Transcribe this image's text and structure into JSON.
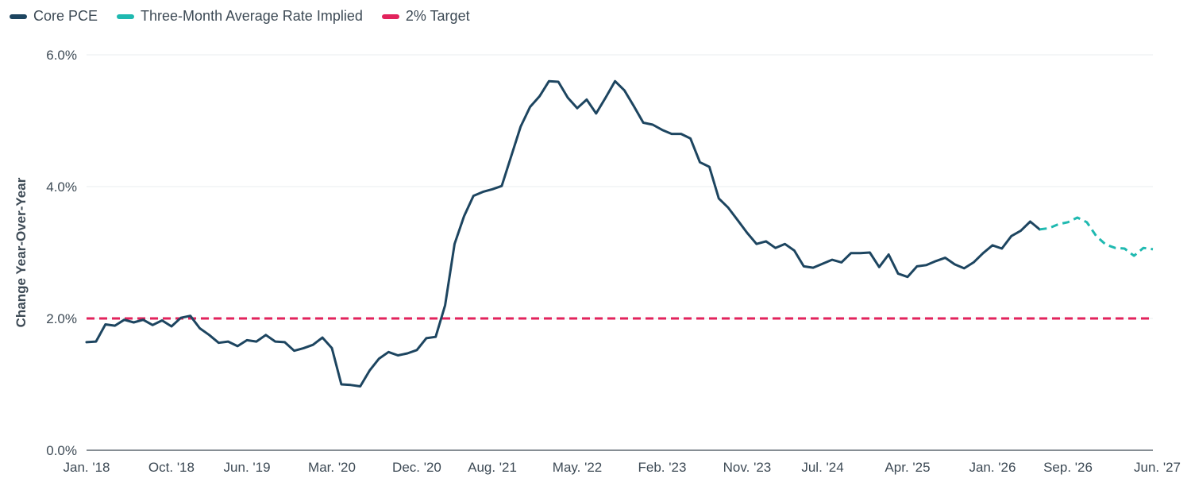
{
  "chart_data": {
    "type": "line",
    "ylabel": "Change Year-Over-Year",
    "ylim": [
      0,
      6
    ],
    "y_ticks": [
      "0.0%",
      "2.0%",
      "4.0%",
      "6.0%"
    ],
    "y_tick_values": [
      0,
      2,
      4,
      6
    ],
    "x_tick_labels": [
      "Jan. '18",
      "Oct. '18",
      "Jun. '19",
      "Mar. '20",
      "Dec. '20",
      "Aug. '21",
      "May. '22",
      "Feb. '23",
      "Nov. '23",
      "Jul. '24",
      "Apr. '25",
      "Jan. '26",
      "Sep. '26",
      "Jun. '27"
    ],
    "x_tick_indices": [
      0,
      9,
      17,
      26,
      35,
      43,
      52,
      61,
      70,
      78,
      87,
      96,
      104,
      113
    ],
    "x_range": [
      0,
      113
    ],
    "grid": true,
    "legend_position": "top-left",
    "series": [
      {
        "name": "Core PCE",
        "color": "#1d4560",
        "style": "solid",
        "x": [
          0,
          1,
          2,
          3,
          4,
          5,
          6,
          7,
          8,
          9,
          10,
          11,
          12,
          13,
          14,
          15,
          16,
          17,
          18,
          19,
          20,
          21,
          22,
          23,
          24,
          25,
          26,
          27,
          28,
          29,
          30,
          31,
          32,
          33,
          34,
          35,
          36,
          37,
          38,
          39,
          40,
          41,
          42,
          43,
          44,
          45,
          46,
          47,
          48,
          49,
          50,
          51,
          52,
          53,
          54,
          55,
          56,
          57,
          58,
          59,
          60,
          61,
          62,
          63,
          64,
          65,
          66,
          67,
          68,
          69,
          70,
          71,
          72,
          73,
          74,
          75,
          76,
          77,
          78,
          79,
          80,
          81,
          82,
          83,
          84,
          85,
          86,
          87,
          88,
          89,
          90,
          91,
          92,
          93,
          94,
          95,
          96,
          97,
          98,
          99,
          100,
          101
        ],
        "values": [
          1.64,
          1.65,
          1.91,
          1.89,
          1.98,
          1.94,
          1.98,
          1.9,
          1.97,
          1.88,
          2.01,
          2.04,
          1.85,
          1.75,
          1.63,
          1.65,
          1.58,
          1.67,
          1.65,
          1.75,
          1.65,
          1.64,
          1.51,
          1.55,
          1.6,
          1.71,
          1.55,
          1.0,
          0.99,
          0.97,
          1.21,
          1.39,
          1.49,
          1.44,
          1.47,
          1.52,
          1.7,
          1.72,
          2.2,
          3.13,
          3.55,
          3.86,
          3.92,
          3.96,
          4.01,
          4.46,
          4.91,
          5.21,
          5.37,
          5.6,
          5.59,
          5.35,
          5.19,
          5.32,
          5.11,
          5.35,
          5.6,
          5.46,
          5.22,
          4.97,
          4.94,
          4.86,
          4.8,
          4.8,
          4.73,
          4.37,
          4.3,
          3.82,
          3.68,
          3.49,
          3.3,
          3.13,
          3.17,
          3.07,
          3.13,
          3.03,
          2.79,
          2.77,
          2.83,
          2.89,
          2.85,
          2.99,
          2.99,
          3.0,
          2.78,
          2.97,
          2.68,
          2.63,
          2.79,
          2.81,
          2.87,
          2.92,
          2.82,
          2.76,
          2.85,
          2.99,
          3.11,
          3.06,
          3.25,
          3.33,
          3.47,
          3.35
        ]
      },
      {
        "name": "Three-Month Average Rate Implied",
        "color": "#1fb9b0",
        "style": "dashed",
        "x": [
          101,
          102,
          103,
          104,
          105,
          106,
          107,
          108,
          109,
          110,
          111,
          112,
          113
        ],
        "values": [
          3.35,
          3.37,
          3.43,
          3.46,
          3.53,
          3.46,
          3.25,
          3.12,
          3.07,
          3.06,
          2.95,
          3.07,
          3.05
        ]
      },
      {
        "name": "2% Target",
        "color": "#e2235c",
        "style": "dashed",
        "x": [
          0,
          113
        ],
        "values": [
          2.0,
          2.0
        ]
      }
    ]
  }
}
